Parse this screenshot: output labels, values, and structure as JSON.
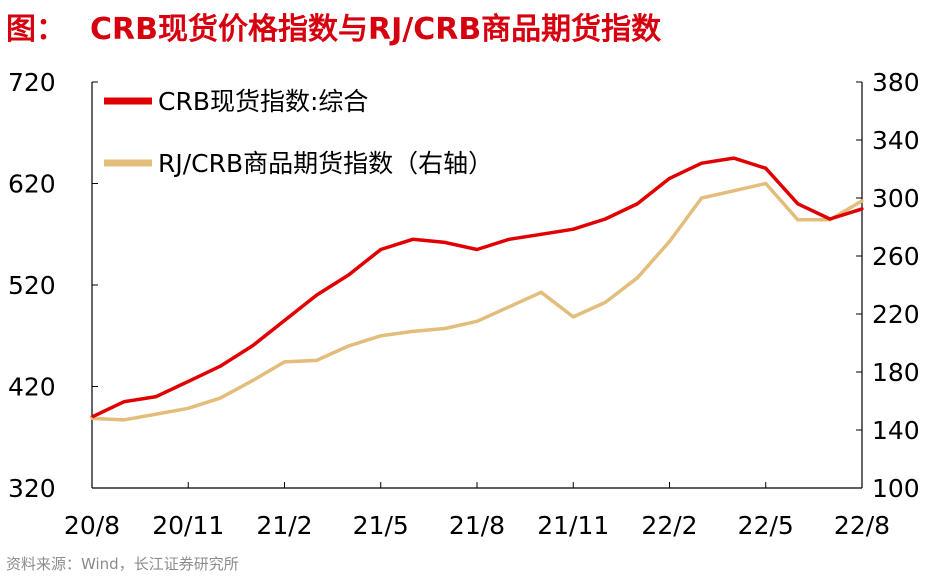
{
  "header": {
    "prefix": "图：",
    "title": "CRB现货价格指数与RJ/CRB商品期货指数"
  },
  "source": "资料来源：Wind，长江证券研究所",
  "chart_data": {
    "type": "line",
    "title": "CRB现货价格指数与RJ/CRB商品期货指数",
    "x_tick_labels": [
      "20/8",
      "20/11",
      "21/2",
      "21/5",
      "21/8",
      "21/11",
      "22/2",
      "22/5",
      "22/8"
    ],
    "x": [
      "2020-08",
      "2020-09",
      "2020-10",
      "2020-11",
      "2020-12",
      "2021-01",
      "2021-02",
      "2021-03",
      "2021-04",
      "2021-05",
      "2021-06",
      "2021-07",
      "2021-08",
      "2021-09",
      "2021-10",
      "2021-11",
      "2021-12",
      "2022-01",
      "2022-02",
      "2022-03",
      "2022-04",
      "2022-05",
      "2022-06",
      "2022-07",
      "2022-08"
    ],
    "ylim_left": [
      320,
      720
    ],
    "yticks_left": [
      320,
      420,
      520,
      620,
      720
    ],
    "ylim_right": [
      100,
      380
    ],
    "yticks_right": [
      100,
      140,
      180,
      220,
      260,
      300,
      340,
      380
    ],
    "legend_position": "top-left",
    "grid": false,
    "series": [
      {
        "name": "CRB现货指数:综合",
        "axis": "left",
        "color": "#e00000",
        "values": [
          390,
          405,
          410,
          425,
          440,
          460,
          485,
          510,
          530,
          555,
          565,
          562,
          555,
          565,
          570,
          575,
          585,
          600,
          625,
          640,
          645,
          635,
          600,
          585,
          595
        ]
      },
      {
        "name": "RJ/CRB商品期货指数（右轴）",
        "axis": "right",
        "color": "#e3bd7b",
        "values": [
          148,
          147,
          151,
          155,
          162,
          174,
          187,
          188,
          198,
          205,
          208,
          210,
          215,
          225,
          235,
          218,
          228,
          245,
          270,
          300,
          305,
          310,
          285,
          285,
          298
        ]
      }
    ]
  }
}
